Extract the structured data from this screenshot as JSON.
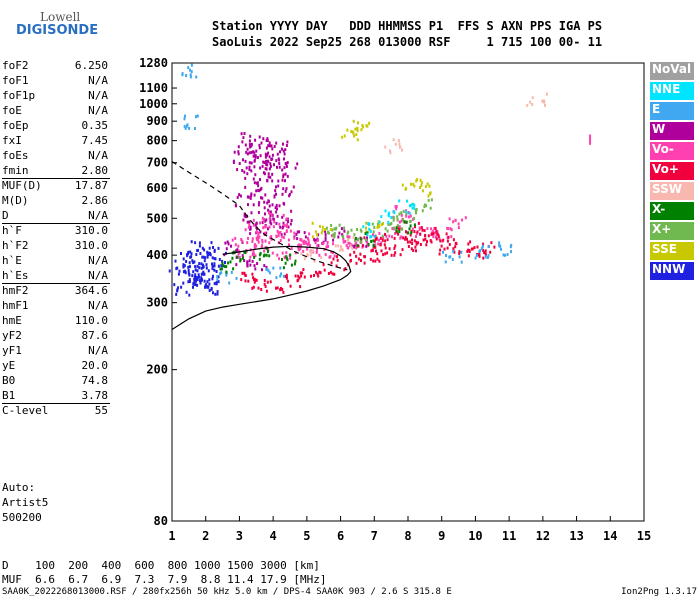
{
  "logo": {
    "top": "Lowell",
    "bottom": "DIGISONDE"
  },
  "header": {
    "line1": "Station YYYY DAY   DDD HHMMSS P1  FFS S AXN PPS IGA PS",
    "line2": "SaoLuis 2022 Sep25 268 013000 RSF     1 715 100 00- 11"
  },
  "params": [
    {
      "label": "foF2",
      "value": "6.250"
    },
    {
      "label": "foF1",
      "value": "N/A"
    },
    {
      "label": "foF1p",
      "value": "N/A"
    },
    {
      "label": "foE",
      "value": "N/A"
    },
    {
      "label": "foEp",
      "value": "0.35"
    },
    {
      "label": "fxI",
      "value": "7.45"
    },
    {
      "label": "foEs",
      "value": "N/A"
    },
    {
      "label": "fmin",
      "value": "2.80"
    },
    {
      "label": "MUF(D)",
      "value": "17.87"
    },
    {
      "label": "M(D)",
      "value": "2.86"
    },
    {
      "label": "D",
      "value": "N/A"
    },
    {
      "label": "h`F",
      "value": "310.0"
    },
    {
      "label": "h`F2",
      "value": "310.0"
    },
    {
      "label": "h`E",
      "value": "N/A"
    },
    {
      "label": "h`Es",
      "value": "N/A"
    },
    {
      "label": "hmF2",
      "value": "364.6"
    },
    {
      "label": "hmF1",
      "value": "N/A"
    },
    {
      "label": "hmE",
      "value": "110.0"
    },
    {
      "label": "yF2",
      "value": "87.6"
    },
    {
      "label": "yF1",
      "value": "N/A"
    },
    {
      "label": "yE",
      "value": "20.0"
    },
    {
      "label": "B0",
      "value": "74.8"
    },
    {
      "label": "B1",
      "value": "3.78"
    },
    {
      "label": "C-level",
      "value": "55"
    }
  ],
  "auto": {
    "line1": "Auto:",
    "line2": "Artist5",
    "line3": "500200"
  },
  "legend": [
    {
      "label": "NoVal",
      "color": "#a0a0a0"
    },
    {
      "label": "NNE",
      "color": "#00e5ff"
    },
    {
      "label": "E",
      "color": "#40a8f0"
    },
    {
      "label": "W",
      "color": "#b0009c"
    },
    {
      "label": "Vo-",
      "color": "#ff40b0"
    },
    {
      "label": "Vo+",
      "color": "#f0003c"
    },
    {
      "label": "SSW",
      "color": "#f8b8b0"
    },
    {
      "label": "X-",
      "color": "#008000"
    },
    {
      "label": "X+",
      "color": "#70b850"
    },
    {
      "label": "SSE",
      "color": "#c8c800"
    },
    {
      "label": "NNW",
      "color": "#2020e0"
    }
  ],
  "muf_table": {
    "d_label": "D",
    "distances": [
      "100",
      "200",
      "400",
      "600",
      "800",
      "1000",
      "1500",
      "3000"
    ],
    "d_unit": "[km]",
    "muf_label": "MUF",
    "mufs": [
      "6.6",
      "6.7",
      "6.9",
      "7.3",
      "7.9",
      "8.8",
      "11.4",
      "17.9"
    ],
    "muf_unit": "[MHz]"
  },
  "footer": {
    "left": "SAA0K_2022268013000.RSF / 280fx256h 50 kHz 5.0 km / DPS-4 SAA0K 903 / 2.6 S 315.8 E",
    "right": "Ion2Png 1.3.17"
  },
  "chart_data": {
    "type": "scatter",
    "xlabel": "",
    "ylabel": "",
    "xlim": [
      1,
      15
    ],
    "ylim": [
      80,
      1280
    ],
    "y_scale": "log",
    "x_ticks": [
      "1",
      "2",
      "3",
      "4",
      "5",
      "6",
      "7",
      "8",
      "9",
      "10",
      "11",
      "12",
      "13",
      "14",
      "15"
    ],
    "y_ticks": [
      "80",
      "200",
      "300",
      "400",
      "500",
      "600",
      "700",
      "800",
      "900",
      "1000",
      "1100",
      "1280"
    ],
    "grid": false,
    "clusters": [
      {
        "name": "NNW",
        "color": "#2020e0",
        "points": [
          [
            1.2,
            380
          ],
          [
            1.4,
            360
          ],
          [
            1.5,
            400
          ],
          [
            1.6,
            345
          ],
          [
            1.7,
            372
          ],
          [
            1.8,
            390
          ],
          [
            1.9,
            350
          ],
          [
            2.0,
            380
          ],
          [
            2.1,
            410
          ],
          [
            2.2,
            340
          ],
          [
            2.3,
            392
          ],
          [
            1.3,
            330
          ],
          [
            1.85,
            420
          ],
          [
            2.05,
            332
          ],
          [
            1.55,
            355
          ],
          [
            1.95,
            365
          ]
        ]
      },
      {
        "name": "W",
        "color": "#b0009c",
        "points": [
          [
            3.0,
            690
          ],
          [
            3.1,
            760
          ],
          [
            3.2,
            730
          ],
          [
            3.3,
            810
          ],
          [
            3.4,
            620
          ],
          [
            3.5,
            680
          ],
          [
            3.6,
            760
          ],
          [
            3.7,
            700
          ],
          [
            3.8,
            800
          ],
          [
            3.9,
            640
          ],
          [
            4.0,
            720
          ],
          [
            4.1,
            770
          ],
          [
            4.2,
            660
          ],
          [
            4.3,
            600
          ],
          [
            4.4,
            710
          ],
          [
            3.15,
            560
          ],
          [
            3.45,
            580
          ],
          [
            3.75,
            540
          ],
          [
            4.05,
            560
          ],
          [
            3.35,
            500
          ],
          [
            3.85,
            520
          ],
          [
            4.25,
            505
          ],
          [
            3.55,
            470
          ],
          [
            3.95,
            480
          ],
          [
            2.8,
            420
          ],
          [
            3.1,
            395
          ],
          [
            3.5,
            380
          ],
          [
            4.5,
            460
          ],
          [
            5.2,
            445
          ],
          [
            5.8,
            455
          ],
          [
            6.5,
            430
          ]
        ]
      },
      {
        "name": "Vo-",
        "color": "#ff40b0",
        "points": [
          [
            3.0,
            430
          ],
          [
            3.2,
            410
          ],
          [
            3.4,
            455
          ],
          [
            3.6,
            425
          ],
          [
            3.8,
            440
          ],
          [
            4.0,
            460
          ],
          [
            4.2,
            410
          ],
          [
            4.4,
            450
          ],
          [
            4.6,
            430
          ],
          [
            4.8,
            420
          ],
          [
            5.0,
            440
          ],
          [
            5.3,
            425
          ],
          [
            5.6,
            415
          ],
          [
            6.0,
            440
          ],
          [
            6.4,
            425
          ],
          [
            7.0,
            445
          ],
          [
            7.5,
            465
          ],
          [
            8.0,
            490
          ],
          [
            8.5,
            470
          ],
          [
            9.0,
            455
          ],
          [
            9.4,
            490
          ],
          [
            3.5,
            495
          ],
          [
            4.1,
            500
          ],
          [
            7.8,
            520
          ]
        ]
      },
      {
        "name": "Vo+",
        "color": "#f0003c",
        "points": [
          [
            3.3,
            350
          ],
          [
            3.6,
            340
          ],
          [
            4.0,
            335
          ],
          [
            4.5,
            345
          ],
          [
            5.0,
            355
          ],
          [
            5.5,
            370
          ],
          [
            6.0,
            385
          ],
          [
            6.5,
            395
          ],
          [
            7.0,
            405
          ],
          [
            7.5,
            415
          ],
          [
            8.0,
            430
          ],
          [
            8.3,
            445
          ],
          [
            8.6,
            460
          ],
          [
            8.9,
            440
          ],
          [
            9.2,
            420
          ],
          [
            9.6,
            430
          ],
          [
            10.0,
            410
          ],
          [
            10.3,
            420
          ],
          [
            6.8,
            430
          ],
          [
            7.3,
            440
          ],
          [
            7.7,
            460
          ],
          [
            8.2,
            470
          ]
        ]
      },
      {
        "name": "E",
        "color": "#40a8f0",
        "points": [
          [
            1.4,
            1230
          ],
          [
            1.55,
            900
          ],
          [
            9.3,
            400
          ],
          [
            10.2,
            410
          ],
          [
            10.8,
            420
          ],
          [
            4.0,
            360
          ],
          [
            2.6,
            350
          ]
        ]
      },
      {
        "name": "X+",
        "color": "#70b850",
        "points": [
          [
            6.5,
            455
          ],
          [
            7.2,
            470
          ],
          [
            8.0,
            510
          ],
          [
            8.4,
            545
          ],
          [
            7.6,
            490
          ],
          [
            5.8,
            470
          ],
          [
            6.0,
            460
          ]
        ]
      },
      {
        "name": "SSE",
        "color": "#c8c800",
        "points": [
          [
            6.3,
            840
          ],
          [
            6.6,
            870
          ],
          [
            8.1,
            620
          ],
          [
            8.6,
            600
          ],
          [
            5.4,
            470
          ],
          [
            7.0,
            480
          ]
        ]
      },
      {
        "name": "X-",
        "color": "#008000",
        "points": [
          [
            2.7,
            380
          ],
          [
            2.9,
            400
          ],
          [
            3.6,
            410
          ],
          [
            6.7,
            445
          ],
          [
            7.9,
            480
          ],
          [
            4.4,
            390
          ]
        ]
      },
      {
        "name": "SSW",
        "color": "#f8b8b0",
        "points": [
          [
            11.8,
            1035
          ],
          [
            7.5,
            780
          ],
          [
            6.1,
            430
          ],
          [
            5.1,
            400
          ]
        ]
      },
      {
        "name": "NNE",
        "color": "#00e5ff",
        "points": [
          [
            7.4,
            510
          ],
          [
            8.0,
            540
          ],
          [
            6.9,
            470
          ]
        ]
      }
    ],
    "marker": {
      "color": "#ff40b0",
      "x": 13.4,
      "y_range": [
        780,
        830
      ]
    },
    "curves": [
      {
        "name": "dashed",
        "style": "dashed",
        "points": [
          [
            1.0,
            705
          ],
          [
            1.5,
            660
          ],
          [
            2.0,
            620
          ],
          [
            2.5,
            580
          ],
          [
            3.0,
            540
          ],
          [
            3.2,
            510
          ],
          [
            3.4,
            485
          ],
          [
            3.6,
            465
          ],
          [
            3.8,
            450
          ],
          [
            4.0,
            440
          ],
          [
            4.3,
            425
          ],
          [
            4.6,
            410
          ],
          [
            5.0,
            396
          ],
          [
            5.4,
            384
          ],
          [
            5.8,
            374
          ],
          [
            6.2,
            366
          ]
        ]
      },
      {
        "name": "solid",
        "style": "solid",
        "points": [
          [
            1.0,
            255
          ],
          [
            1.5,
            272
          ],
          [
            2.0,
            285
          ],
          [
            2.5,
            292
          ],
          [
            3.0,
            297
          ],
          [
            3.5,
            302
          ],
          [
            4.0,
            307
          ],
          [
            4.5,
            314
          ],
          [
            5.0,
            322
          ],
          [
            5.5,
            332
          ],
          [
            6.0,
            345
          ],
          [
            6.2,
            354
          ],
          [
            6.3,
            362
          ],
          [
            6.25,
            375
          ],
          [
            6.15,
            387
          ],
          [
            6.0,
            398
          ],
          [
            5.8,
            408
          ],
          [
            5.5,
            416
          ],
          [
            5.0,
            420
          ],
          [
            4.5,
            422
          ],
          [
            4.0,
            420
          ],
          [
            3.5,
            415
          ],
          [
            3.0,
            408
          ],
          [
            2.5,
            402
          ]
        ]
      }
    ]
  }
}
